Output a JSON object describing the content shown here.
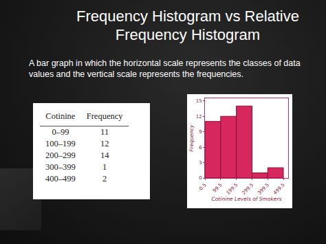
{
  "title": "Frequency Histogram vs Relative Frequency Histogram",
  "text": "A bar graph in which the horizontal scale represents the classes of data values and the vertical scale represents the frequencies.",
  "table": {
    "header": [
      "Cotinine",
      "Frequency"
    ],
    "rows": [
      [
        "0–99",
        "11"
      ],
      [
        "100–199",
        "12"
      ],
      [
        "200–299",
        "14"
      ],
      [
        "300–399",
        "1"
      ],
      [
        "400–499",
        "2"
      ]
    ]
  },
  "chart_data": {
    "type": "histogram",
    "bins": [
      -0.5,
      99.5,
      199.5,
      299.5,
      399.5,
      499.5
    ],
    "values": [
      11,
      12,
      14,
      1,
      2
    ],
    "color": "#d6285f",
    "x_label": "Cotinine Levels of Smokers",
    "y_label": "Frequency",
    "xlim": [
      -0.5,
      530
    ],
    "xticks": [
      -0.5,
      99.5,
      199.5,
      299.5,
      399.5,
      499.5
    ],
    "ylim": [
      0,
      15.5
    ],
    "yticks": [
      0,
      3,
      6,
      9,
      12,
      15
    ],
    "grid": false
  }
}
